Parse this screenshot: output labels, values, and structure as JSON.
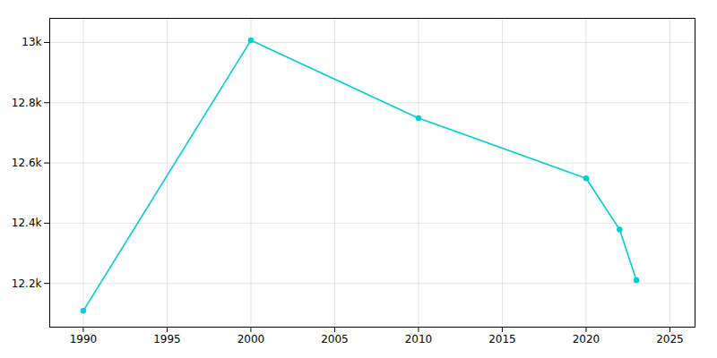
{
  "chart_data": {
    "type": "line",
    "x": [
      1990,
      2000,
      2010,
      2020,
      2022,
      2023
    ],
    "values": [
      12109,
      13007,
      12749,
      12549,
      12379,
      12211
    ],
    "color": "#00CED1",
    "marker": "circle",
    "xlim": [
      1988,
      2026.5
    ],
    "ylim": [
      12055,
      13080
    ],
    "xticks": [
      1990,
      1995,
      2000,
      2005,
      2010,
      2015,
      2020,
      2025
    ],
    "yticks": [
      {
        "value": 12200,
        "label": "12.2k"
      },
      {
        "value": 12400,
        "label": "12.4k"
      },
      {
        "value": 12600,
        "label": "12.6k"
      },
      {
        "value": 12800,
        "label": "12.8k"
      },
      {
        "value": 13000,
        "label": "13k"
      }
    ],
    "grid": true
  }
}
